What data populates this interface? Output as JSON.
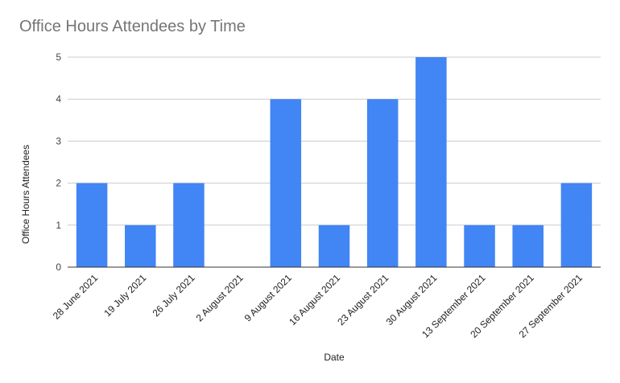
{
  "chart_data": {
    "type": "bar",
    "title": "Office Hours Attendees by Time",
    "xlabel": "Date",
    "ylabel": "Office Hours Attendees",
    "categories": [
      "28 June 2021",
      "19 July 2021",
      "26 July 2021",
      "2 August 2021",
      "9 August 2021",
      "16 August 2021",
      "23 August 2021",
      "30 August 2021",
      "13 September 2021",
      "20 September 2021",
      "27 September 2021"
    ],
    "values": [
      2,
      1,
      2,
      0,
      4,
      1,
      4,
      5,
      1,
      1,
      2
    ],
    "ylim": [
      0,
      5
    ],
    "yticks": [
      "0",
      "1",
      "2",
      "3",
      "4",
      "5"
    ],
    "grid": true,
    "legend": "none",
    "colors": {
      "bar": "#4285f4",
      "grid": "#cccccc",
      "axis": "#333333"
    }
  }
}
